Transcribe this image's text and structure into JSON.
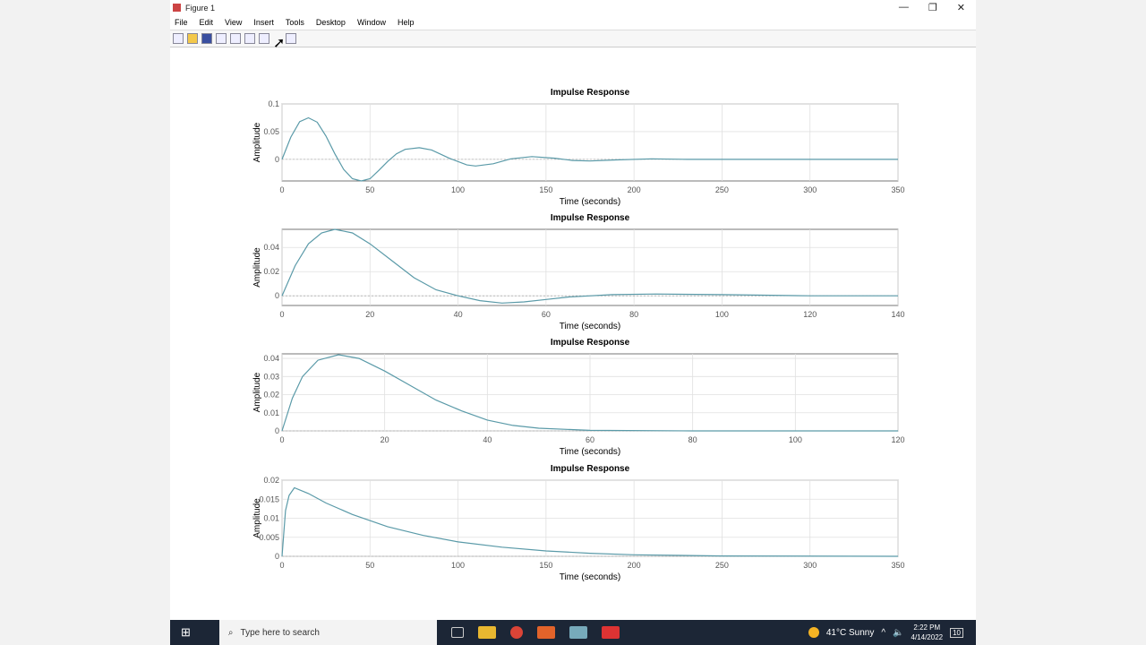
{
  "window": {
    "title": "Figure 1",
    "menu": [
      "File",
      "Edit",
      "View",
      "Insert",
      "Tools",
      "Desktop",
      "Window",
      "Help"
    ],
    "controls": [
      "—",
      "❐",
      "✕"
    ]
  },
  "taskbar": {
    "search_placeholder": "Type here to search",
    "weather": "41°C  Sunny",
    "time": "2:22 PM",
    "date": "4/14/2022",
    "notifications": "10"
  },
  "colors": {
    "line": "#5a9aa8",
    "grid": "#e0e0e0",
    "taskbar": "#1c2636"
  },
  "chart_data": [
    {
      "type": "line",
      "title": "Impulse Response",
      "xlabel": "Time (seconds)",
      "ylabel": "Amplitude",
      "xlim": [
        0,
        350
      ],
      "ylim": [
        -0.039,
        0.1
      ],
      "xticks": [
        0,
        50,
        100,
        150,
        200,
        250,
        300,
        350
      ],
      "yticks": [
        0,
        0.05,
        0.1
      ],
      "ytick_labels": [
        "0",
        "0.05",
        "0.1"
      ],
      "grid": true,
      "points": [
        [
          0,
          0
        ],
        [
          5,
          0.04
        ],
        [
          10,
          0.068
        ],
        [
          15,
          0.075
        ],
        [
          20,
          0.067
        ],
        [
          25,
          0.042
        ],
        [
          30,
          0.01
        ],
        [
          35,
          -0.018
        ],
        [
          40,
          -0.035
        ],
        [
          45,
          -0.039
        ],
        [
          50,
          -0.035
        ],
        [
          55,
          -0.02
        ],
        [
          60,
          -0.004
        ],
        [
          65,
          0.01
        ],
        [
          70,
          0.018
        ],
        [
          78,
          0.021
        ],
        [
          85,
          0.017
        ],
        [
          95,
          0.002
        ],
        [
          105,
          -0.01
        ],
        [
          110,
          -0.012
        ],
        [
          120,
          -0.008
        ],
        [
          130,
          0.001
        ],
        [
          142,
          0.005
        ],
        [
          155,
          0.002
        ],
        [
          165,
          -0.002
        ],
        [
          175,
          -0.003
        ],
        [
          190,
          -0.001
        ],
        [
          210,
          0.001
        ],
        [
          230,
          0
        ],
        [
          350,
          0
        ]
      ]
    },
    {
      "type": "line",
      "title": "Impulse Response",
      "xlabel": "Time (seconds)",
      "ylabel": "Amplitude",
      "xlim": [
        0,
        140
      ],
      "ylim": [
        -0.008,
        0.055
      ],
      "xticks": [
        0,
        20,
        40,
        60,
        80,
        100,
        120,
        140
      ],
      "yticks": [
        0,
        0.02,
        0.04
      ],
      "ytick_labels": [
        "0",
        "0.02",
        "0.04"
      ],
      "grid": true,
      "points": [
        [
          0,
          0
        ],
        [
          3,
          0.025
        ],
        [
          6,
          0.043
        ],
        [
          9,
          0.052
        ],
        [
          12,
          0.055
        ],
        [
          16,
          0.052
        ],
        [
          20,
          0.043
        ],
        [
          25,
          0.029
        ],
        [
          30,
          0.015
        ],
        [
          35,
          0.005
        ],
        [
          40,
          0
        ],
        [
          45,
          -0.004
        ],
        [
          50,
          -0.006
        ],
        [
          55,
          -0.005
        ],
        [
          60,
          -0.003
        ],
        [
          65,
          -0.001
        ],
        [
          75,
          0.001
        ],
        [
          85,
          0.0015
        ],
        [
          100,
          0.001
        ],
        [
          120,
          0
        ],
        [
          140,
          0
        ]
      ]
    },
    {
      "type": "line",
      "title": "Impulse Response",
      "xlabel": "Time (seconds)",
      "ylabel": "Amplitude",
      "xlim": [
        0,
        120
      ],
      "ylim": [
        0,
        0.0425
      ],
      "xticks": [
        0,
        20,
        40,
        60,
        80,
        100,
        120
      ],
      "yticks": [
        0,
        0.01,
        0.02,
        0.03,
        0.04
      ],
      "ytick_labels": [
        "0",
        "0.01",
        "0.02",
        "0.03",
        "0.04"
      ],
      "grid": true,
      "points": [
        [
          0,
          0
        ],
        [
          2,
          0.018
        ],
        [
          4,
          0.03
        ],
        [
          7,
          0.039
        ],
        [
          11,
          0.042
        ],
        [
          15,
          0.04
        ],
        [
          20,
          0.033
        ],
        [
          25,
          0.025
        ],
        [
          30,
          0.017
        ],
        [
          35,
          0.011
        ],
        [
          40,
          0.006
        ],
        [
          45,
          0.003
        ],
        [
          50,
          0.0015
        ],
        [
          60,
          0.0003
        ],
        [
          80,
          0
        ],
        [
          120,
          0
        ]
      ]
    },
    {
      "type": "line",
      "title": "Impulse Response",
      "xlabel": "Time (seconds)",
      "ylabel": "Amplitude",
      "xlim": [
        0,
        350
      ],
      "ylim": [
        0,
        0.02
      ],
      "xticks": [
        0,
        50,
        100,
        150,
        200,
        250,
        300,
        350
      ],
      "yticks": [
        0,
        0.005,
        0.01,
        0.015,
        0.02
      ],
      "ytick_labels": [
        "0",
        "0.005",
        "0.01",
        "0.015",
        "0.02"
      ],
      "grid": true,
      "points": [
        [
          0,
          0
        ],
        [
          2,
          0.012
        ],
        [
          4,
          0.016
        ],
        [
          7,
          0.018
        ],
        [
          15,
          0.0165
        ],
        [
          25,
          0.014
        ],
        [
          40,
          0.011
        ],
        [
          60,
          0.0078
        ],
        [
          80,
          0.0055
        ],
        [
          100,
          0.0038
        ],
        [
          125,
          0.0024
        ],
        [
          150,
          0.0014
        ],
        [
          175,
          0.0008
        ],
        [
          200,
          0.0004
        ],
        [
          250,
          0.0001
        ],
        [
          350,
          0
        ]
      ]
    }
  ]
}
